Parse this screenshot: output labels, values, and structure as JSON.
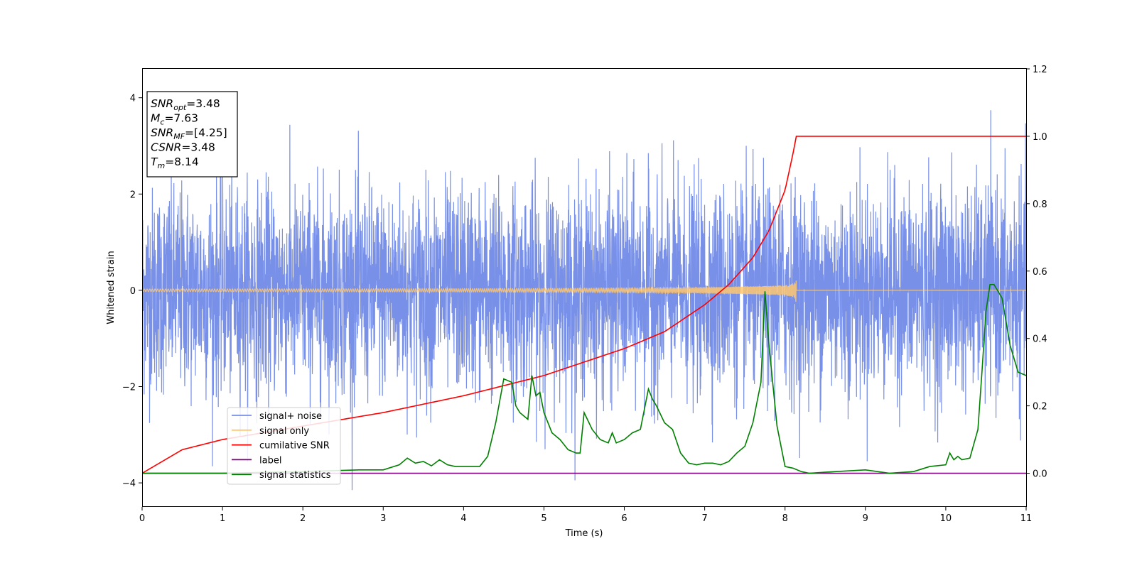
{
  "chart_data": {
    "type": "line",
    "xlabel": "Time (s)",
    "ylabel": "Whitened strain",
    "xlim": [
      0,
      11
    ],
    "ylim": [
      -4.5,
      4.6
    ],
    "y2lim": [
      -0.1,
      1.2
    ],
    "x_ticks": [
      "0",
      "1",
      "2",
      "3",
      "4",
      "5",
      "6",
      "7",
      "8",
      "9",
      "10",
      "11"
    ],
    "y_ticks": [
      "4",
      "2",
      "0",
      "−2",
      "−4"
    ],
    "y2_ticks": [
      "1.2",
      "1.0",
      "0.8",
      "0.6",
      "0.4",
      "0.2",
      "0.0"
    ],
    "grid": false,
    "legend_position": "lower-left",
    "info_box": {
      "lines": [
        {
          "base": "SNR",
          "sub": "opt",
          "value": "=3.48"
        },
        {
          "base": "M",
          "sub": "c",
          "value": "=7.63"
        },
        {
          "base": "SNR",
          "sub": "MF",
          "value": "=[4.25]"
        },
        {
          "base": "CSNR",
          "sub": "",
          "value": "=3.48"
        },
        {
          "base": "T",
          "sub": "m",
          "value": "=8.14"
        }
      ]
    },
    "series": [
      {
        "name": "signal+ noise",
        "color": "#7890e8",
        "axis": "left",
        "description": "whitened noise, roughly unit variance, spikes up to ~4"
      },
      {
        "name": "signal only",
        "color": "#ffc870",
        "axis": "left",
        "description": "chirp growing to amplitude ~0.45 ending at t=8.14"
      },
      {
        "name": "cumilative SNR",
        "color": "#ff0000",
        "axis": "right",
        "x": [
          0,
          0.5,
          1,
          2,
          3,
          4,
          5,
          5.5,
          6,
          6.5,
          7,
          7.3,
          7.6,
          7.8,
          8.0,
          8.1,
          8.14,
          9,
          10,
          11
        ],
        "values": [
          0.0,
          0.07,
          0.1,
          0.14,
          0.18,
          0.23,
          0.29,
          0.33,
          0.37,
          0.42,
          0.5,
          0.56,
          0.64,
          0.72,
          0.84,
          0.95,
          1.0,
          1.0,
          1.0,
          1.0
        ]
      },
      {
        "name": "label",
        "color": "#800080",
        "axis": "right",
        "x": [
          0,
          11
        ],
        "values": [
          0.0,
          0.0
        ]
      },
      {
        "name": "signal statistics",
        "color": "#008000",
        "axis": "right",
        "x": [
          0,
          1,
          2,
          2.7,
          3,
          3.2,
          3.3,
          3.4,
          3.5,
          3.6,
          3.7,
          3.8,
          3.9,
          4.0,
          4.1,
          4.2,
          4.3,
          4.4,
          4.5,
          4.6,
          4.65,
          4.7,
          4.8,
          4.85,
          4.9,
          4.95,
          5.0,
          5.1,
          5.2,
          5.3,
          5.4,
          5.45,
          5.5,
          5.6,
          5.7,
          5.8,
          5.85,
          5.9,
          6.0,
          6.1,
          6.2,
          6.3,
          6.35,
          6.4,
          6.5,
          6.6,
          6.7,
          6.8,
          6.9,
          7.0,
          7.1,
          7.2,
          7.3,
          7.4,
          7.5,
          7.6,
          7.7,
          7.75,
          7.8,
          7.9,
          8.0,
          8.1,
          8.2,
          8.3,
          8.5,
          9.0,
          9.3,
          9.6,
          9.8,
          10.0,
          10.05,
          10.1,
          10.15,
          10.2,
          10.3,
          10.4,
          10.45,
          10.5,
          10.55,
          10.6,
          10.65,
          10.7,
          10.8,
          10.9,
          11.0
        ],
        "values": [
          0.0,
          0.0,
          0.005,
          0.01,
          0.01,
          0.025,
          0.045,
          0.03,
          0.035,
          0.022,
          0.04,
          0.025,
          0.02,
          0.02,
          0.02,
          0.02,
          0.05,
          0.15,
          0.28,
          0.27,
          0.2,
          0.18,
          0.16,
          0.29,
          0.23,
          0.24,
          0.18,
          0.12,
          0.1,
          0.07,
          0.06,
          0.06,
          0.18,
          0.13,
          0.1,
          0.09,
          0.12,
          0.09,
          0.1,
          0.12,
          0.13,
          0.25,
          0.22,
          0.2,
          0.15,
          0.13,
          0.06,
          0.03,
          0.025,
          0.03,
          0.03,
          0.025,
          0.035,
          0.06,
          0.08,
          0.15,
          0.27,
          0.54,
          0.38,
          0.14,
          0.02,
          0.015,
          0.005,
          0.0,
          0.003,
          0.01,
          0.0,
          0.005,
          0.02,
          0.025,
          0.06,
          0.04,
          0.05,
          0.04,
          0.045,
          0.13,
          0.3,
          0.48,
          0.56,
          0.56,
          0.54,
          0.52,
          0.38,
          0.3,
          0.29
        ]
      }
    ]
  }
}
